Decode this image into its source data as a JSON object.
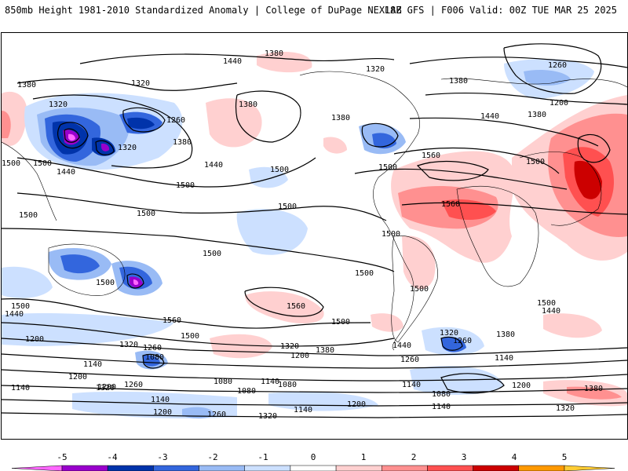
{
  "header": {
    "left": "850mb Height 1981-2010 Standardized Anomaly | College of DuPage NEXLAB",
    "right": "18Z GFS | F006 Valid: 00Z TUE MAR 25 2025"
  },
  "contour_labels": [
    "1440",
    "1380",
    "1320",
    "1380",
    "1320",
    "1500",
    "1260",
    "1380",
    "1320",
    "1500",
    "1440",
    "1380",
    "1500",
    "1440",
    "1380",
    "1500",
    "1500",
    "1500",
    "1560",
    "1560",
    "1560",
    "1500",
    "1500",
    "1500",
    "1500",
    "1500",
    "1260",
    "1320",
    "1380",
    "1440",
    "1200",
    "1500",
    "1500",
    "1380",
    "1500",
    "1560",
    "1500",
    "1500",
    "1500",
    "1440",
    "1500",
    "1440",
    "1200",
    "1320",
    "1260",
    "1080",
    "1140",
    "1200",
    "1380",
    "1320",
    "1200",
    "1260",
    "1140",
    "1200",
    "1260",
    "1320",
    "1080",
    "1140",
    "1080",
    "1140",
    "1440",
    "1320",
    "1260",
    "1200",
    "1140",
    "1080",
    "1140",
    "1200",
    "1380",
    "1320",
    "1380",
    "1320",
    "1200",
    "1140",
    "1260",
    "1140",
    "1080"
  ],
  "colorbar": {
    "ticks": [
      "-5",
      "-4",
      "-3",
      "-2",
      "-1",
      "0",
      "1",
      "2",
      "3",
      "4",
      "5"
    ],
    "colors": [
      "#ff66ff",
      "#9900cc",
      "#0033aa",
      "#3366dd",
      "#99bbf5",
      "#cce0ff",
      "#ffffff",
      "#ffd0d0",
      "#ff9090",
      "#ff5050",
      "#cc0000",
      "#ff9900",
      "#ffcc33"
    ]
  }
}
